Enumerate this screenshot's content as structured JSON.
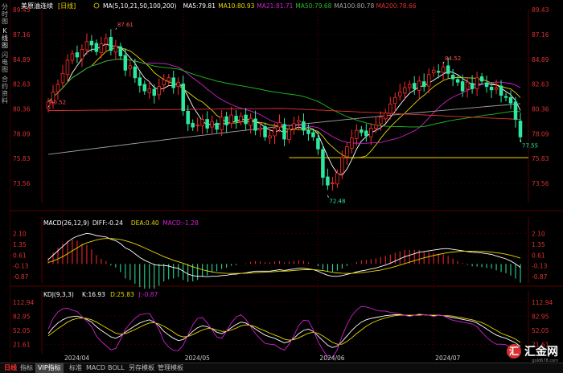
{
  "sidebar": {
    "tabs": [
      "分时图",
      "K线图",
      "闪电图",
      "合约资料"
    ]
  },
  "header": {
    "title": "美原油连续",
    "period": "[日线]",
    "ma": [
      {
        "label": "MA(5,10,21,50,100,200)",
        "color": "#ffffff"
      },
      {
        "label": "MA5:79.81",
        "color": "#ffffff"
      },
      {
        "label": "MA10:80.93",
        "color": "#e8d800"
      },
      {
        "label": "MA21:81.71",
        "color": "#d020d0"
      },
      {
        "label": "MA50:79.68",
        "color": "#20c020"
      },
      {
        "label": "MA100:80.78",
        "color": "#a0a0a0"
      },
      {
        "label": "MA200:78.66",
        "color": "#e03030"
      }
    ]
  },
  "macd": {
    "labels": [
      {
        "label": "MACD(26,12,9)",
        "color": "#ffffff"
      },
      {
        "label": "DIFF:-0.24",
        "color": "#ffffff"
      },
      {
        "label": "DEA:0.40",
        "color": "#e8d800"
      },
      {
        "label": "MACD:-1.28",
        "color": "#d020d0"
      }
    ],
    "ticks": [
      "2.10",
      "1.35",
      "0.61",
      "-0.13",
      "-0.87"
    ]
  },
  "kdj": {
    "labels": [
      {
        "label": "KDJ(9,3,3)",
        "color": "#ffffff"
      },
      {
        "label": "K:16.93",
        "color": "#ffffff"
      },
      {
        "label": "D:25.83",
        "color": "#e8d800"
      },
      {
        "label": "J:-0.87",
        "color": "#d020d0"
      }
    ],
    "ticks": [
      "112.94",
      "82.95",
      "52.05",
      "21.61"
    ]
  },
  "chart_data": {
    "type": "candlestick",
    "price_ticks": [
      "89.43",
      "87.16",
      "84.89",
      "82.63",
      "80.36",
      "78.09",
      "75.83",
      "73.56"
    ],
    "ylim": [
      71.8,
      89.43
    ],
    "annotations": [
      {
        "text": "87.61",
        "index": 14,
        "value": 87.61
      },
      {
        "text": "80.52",
        "index": 0,
        "value": 80.52
      },
      {
        "text": "72.48",
        "index": 58,
        "value": 72.48
      },
      {
        "text": "84.52",
        "index": 82,
        "value": 84.52
      },
      {
        "text": "77.55",
        "index": 98,
        "value": 77.55
      }
    ],
    "support_line": {
      "value": 75.9,
      "from_index": 50
    },
    "x_labels": [
      {
        "text": "2024/04",
        "index": 3
      },
      {
        "text": "2024/05",
        "index": 28
      },
      {
        "text": "2024/06",
        "index": 56
      },
      {
        "text": "2024/07",
        "index": 80
      }
    ],
    "closes": [
      81.0,
      81.9,
      82.6,
      83.6,
      84.8,
      85.4,
      85.1,
      85.8,
      86.5,
      86.2,
      85.6,
      86.3,
      86.8,
      85.7,
      86.1,
      85.2,
      83.9,
      84.3,
      83.2,
      82.5,
      82.0,
      82.2,
      81.6,
      82.4,
      83.0,
      83.2,
      82.3,
      82.8,
      80.2,
      79.0,
      78.7,
      78.9,
      79.4,
      78.6,
      79.2,
      78.5,
      79.6,
      78.9,
      79.8,
      79.2,
      79.7,
      79.0,
      79.5,
      78.4,
      78.6,
      77.8,
      77.9,
      78.6,
      79.1,
      77.6,
      78.5,
      79.0,
      79.3,
      78.4,
      78.1,
      77.8,
      76.7,
      74.1,
      73.4,
      73.6,
      74.5,
      75.9,
      76.9,
      77.7,
      78.4,
      78.2,
      77.9,
      78.6,
      78.9,
      79.6,
      80.0,
      80.8,
      81.4,
      81.9,
      82.3,
      82.6,
      82.2,
      82.9,
      82.4,
      83.5,
      83.9,
      83.7,
      84.2,
      83.6,
      83.1,
      82.8,
      82.0,
      82.8,
      82.2,
      83.2,
      82.9,
      82.4,
      82.1,
      82.3,
      81.6,
      81.4,
      80.9,
      79.4,
      77.8
    ],
    "macd_diff": [
      0.3,
      0.6,
      0.9,
      1.2,
      1.5,
      1.75,
      1.9,
      2.0,
      2.1,
      2.05,
      1.95,
      1.9,
      1.85,
      1.7,
      1.6,
      1.4,
      1.1,
      0.95,
      0.7,
      0.45,
      0.25,
      0.1,
      -0.05,
      -0.1,
      -0.1,
      -0.15,
      -0.25,
      -0.3,
      -0.5,
      -0.7,
      -0.8,
      -0.85,
      -0.85,
      -0.88,
      -0.85,
      -0.85,
      -0.8,
      -0.78,
      -0.72,
      -0.7,
      -0.65,
      -0.62,
      -0.55,
      -0.5,
      -0.5,
      -0.5,
      -0.5,
      -0.45,
      -0.4,
      -0.45,
      -0.4,
      -0.35,
      -0.3,
      -0.3,
      -0.35,
      -0.4,
      -0.5,
      -0.65,
      -0.78,
      -0.85,
      -0.85,
      -0.8,
      -0.72,
      -0.65,
      -0.55,
      -0.48,
      -0.42,
      -0.35,
      -0.28,
      -0.18,
      -0.08,
      0.05,
      0.2,
      0.35,
      0.5,
      0.6,
      0.7,
      0.8,
      0.85,
      0.9,
      0.95,
      1.0,
      1.05,
      1.05,
      1.0,
      0.95,
      0.9,
      0.85,
      0.8,
      0.78,
      0.75,
      0.7,
      0.65,
      0.55,
      0.45,
      0.35,
      0.2,
      0.0,
      -0.24
    ],
    "macd_dea": [
      0.1,
      0.2,
      0.35,
      0.5,
      0.7,
      0.9,
      1.1,
      1.3,
      1.45,
      1.55,
      1.65,
      1.72,
      1.75,
      1.75,
      1.72,
      1.68,
      1.6,
      1.5,
      1.38,
      1.25,
      1.1,
      0.95,
      0.8,
      0.65,
      0.5,
      0.38,
      0.25,
      0.15,
      0.05,
      -0.08,
      -0.2,
      -0.3,
      -0.4,
      -0.48,
      -0.55,
      -0.6,
      -0.63,
      -0.65,
      -0.66,
      -0.66,
      -0.65,
      -0.64,
      -0.62,
      -0.6,
      -0.58,
      -0.56,
      -0.55,
      -0.53,
      -0.5,
      -0.5,
      -0.48,
      -0.45,
      -0.42,
      -0.4,
      -0.4,
      -0.4,
      -0.42,
      -0.46,
      -0.52,
      -0.58,
      -0.62,
      -0.64,
      -0.65,
      -0.64,
      -0.62,
      -0.6,
      -0.56,
      -0.52,
      -0.47,
      -0.42,
      -0.35,
      -0.27,
      -0.18,
      -0.08,
      0.02,
      0.12,
      0.22,
      0.32,
      0.42,
      0.5,
      0.58,
      0.65,
      0.72,
      0.78,
      0.82,
      0.85,
      0.87,
      0.88,
      0.88,
      0.87,
      0.86,
      0.84,
      0.81,
      0.77,
      0.73,
      0.67,
      0.6,
      0.5,
      0.4
    ],
    "kdj_k": [
      45,
      58,
      68,
      75,
      80,
      82,
      83,
      80,
      76,
      70,
      60,
      52,
      45,
      38,
      35,
      40,
      48,
      55,
      62,
      68,
      72,
      75,
      70,
      62,
      50,
      42,
      35,
      30,
      32,
      40,
      50,
      58,
      62,
      60,
      55,
      48,
      45,
      50,
      58,
      65,
      70,
      68,
      62,
      55,
      48,
      42,
      38,
      35,
      30,
      25,
      28,
      35,
      45,
      52,
      55,
      50,
      40,
      30,
      20,
      15,
      18,
      28,
      40,
      52,
      62,
      70,
      75,
      78,
      80,
      82,
      84,
      85,
      86,
      86,
      85,
      84,
      85,
      86,
      86,
      85,
      84,
      85,
      84,
      82,
      80,
      78,
      76,
      74,
      72,
      68,
      62,
      55,
      48,
      42,
      38,
      35,
      30,
      25,
      17
    ],
    "kdj_d": [
      40,
      48,
      56,
      63,
      70,
      75,
      78,
      79,
      78,
      75,
      70,
      64,
      58,
      52,
      46,
      44,
      45,
      49,
      54,
      59,
      64,
      68,
      69,
      66,
      61,
      55,
      48,
      41,
      38,
      39,
      43,
      48,
      53,
      56,
      56,
      53,
      50,
      50,
      53,
      57,
      62,
      64,
      63,
      60,
      55,
      51,
      46,
      42,
      38,
      33,
      31,
      32,
      36,
      41,
      46,
      48,
      46,
      40,
      33,
      26,
      22,
      22,
      28,
      36,
      45,
      53,
      61,
      67,
      72,
      76,
      79,
      82,
      84,
      85,
      85,
      85,
      85,
      85,
      86,
      85,
      85,
      85,
      84,
      84,
      83,
      81,
      79,
      77,
      75,
      72,
      69,
      64,
      58,
      52,
      46,
      42,
      38,
      33,
      25.8
    ],
    "kdj_j": [
      55,
      78,
      92,
      99,
      100,
      96,
      93,
      82,
      72,
      60,
      40,
      28,
      19,
      10,
      13,
      32,
      54,
      67,
      78,
      86,
      88,
      89,
      72,
      54,
      28,
      16,
      9,
      8,
      20,
      42,
      64,
      78,
      80,
      68,
      53,
      38,
      35,
      50,
      68,
      81,
      86,
      76,
      60,
      45,
      34,
      24,
      22,
      21,
      14,
      9,
      22,
      41,
      63,
      74,
      73,
      54,
      28,
      10,
      -6,
      -7,
      10,
      40,
      64,
      84,
      96,
      104,
      103,
      100,
      96,
      94,
      94,
      91,
      90,
      88,
      85,
      82,
      85,
      88,
      86,
      85,
      82,
      85,
      84,
      78,
      74,
      72,
      70,
      68,
      66,
      60,
      48,
      37,
      28,
      22,
      22,
      21,
      14,
      9,
      -0.87
    ]
  },
  "bottom_bar": {
    "items": [
      "日线",
      "指标",
      "VIP指标",
      "标准",
      "MACD",
      "BOLL",
      "另存模板",
      "管理模板"
    ],
    "active_index": 2
  },
  "logo": {
    "text": "汇金网",
    "mark": "汇",
    "sub": "gold678.com"
  }
}
